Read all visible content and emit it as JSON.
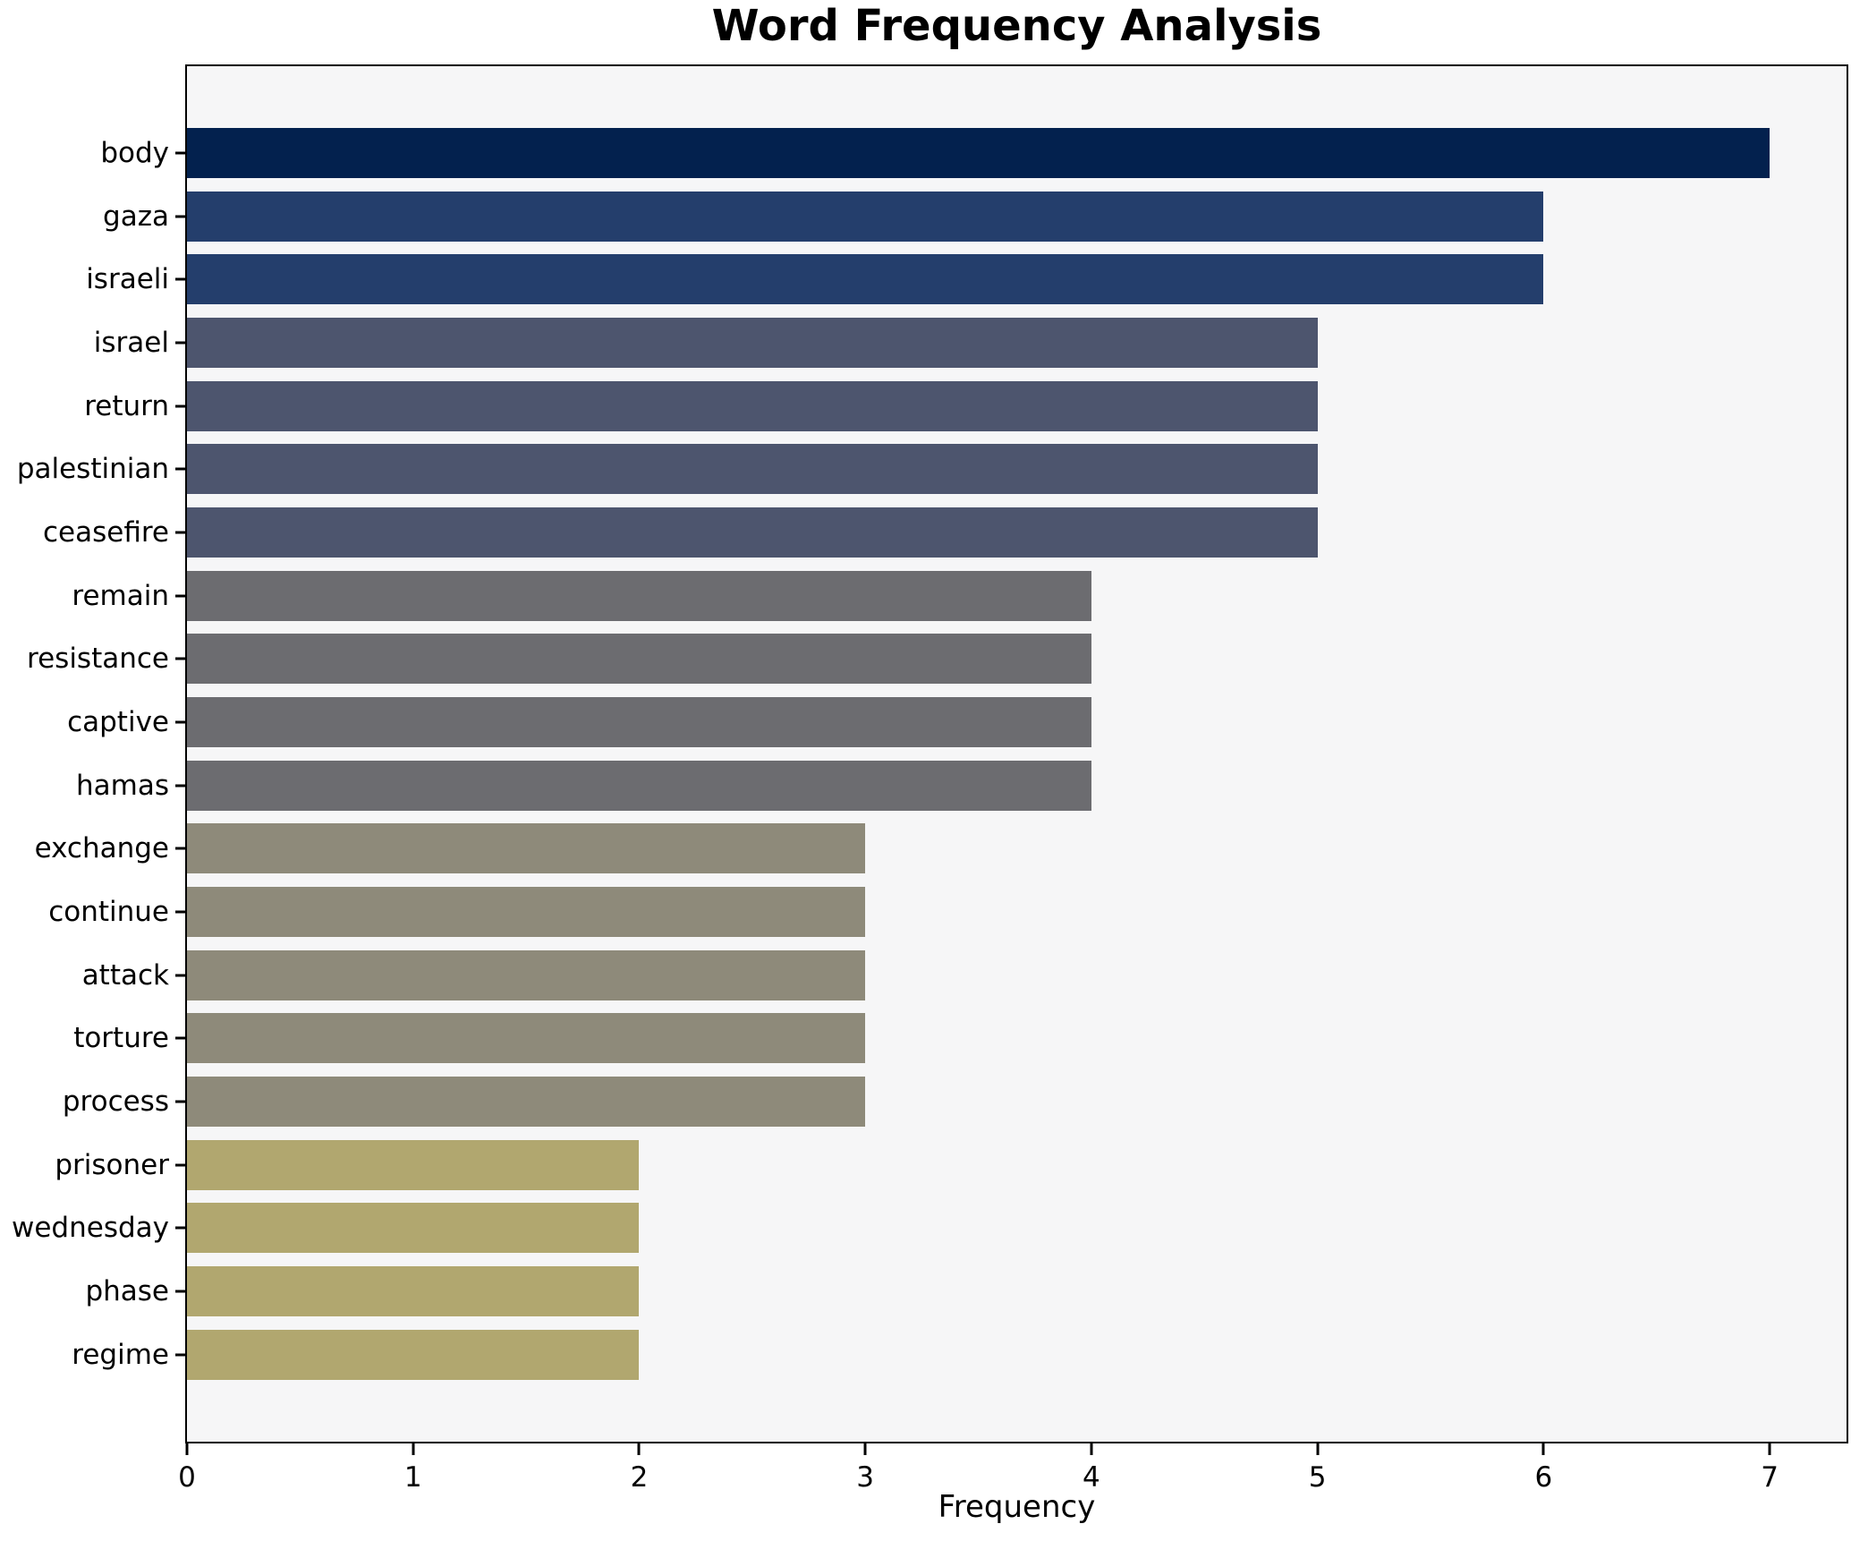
{
  "chart": {
    "title": "Word Frequency Analysis",
    "xlabel": "Frequency"
  },
  "chart_data": {
    "type": "bar",
    "orientation": "horizontal",
    "title": "Word Frequency Analysis",
    "xlabel": "Frequency",
    "ylabel": "",
    "categories": [
      "body",
      "gaza",
      "israeli",
      "israel",
      "return",
      "palestinian",
      "ceasefire",
      "remain",
      "resistance",
      "captive",
      "hamas",
      "exchange",
      "continue",
      "attack",
      "torture",
      "process",
      "prisoner",
      "wednesday",
      "phase",
      "regime"
    ],
    "values": [
      7,
      6,
      6,
      5,
      5,
      5,
      5,
      4,
      4,
      4,
      4,
      3,
      3,
      3,
      3,
      3,
      2,
      2,
      2,
      2
    ],
    "bar_colors": [
      "#03214e",
      "#243e6c",
      "#243e6c",
      "#4d556e",
      "#4d556e",
      "#4d556e",
      "#4d556e",
      "#6c6c70",
      "#6c6c70",
      "#6c6c70",
      "#6c6c70",
      "#8e8a7a",
      "#8e8a7a",
      "#8e8a7a",
      "#8e8a7a",
      "#8e8a7a",
      "#b1a76f",
      "#b1a76f",
      "#b1a76f",
      "#b1a76f"
    ],
    "x_ticks": [
      0,
      1,
      2,
      3,
      4,
      5,
      6,
      7
    ],
    "xlim": [
      0,
      7.34
    ],
    "grid": false,
    "legend_position": "none",
    "plot_background": "#f6f6f7",
    "spine_color": "#000000",
    "bar_height_ratio": 0.8
  }
}
